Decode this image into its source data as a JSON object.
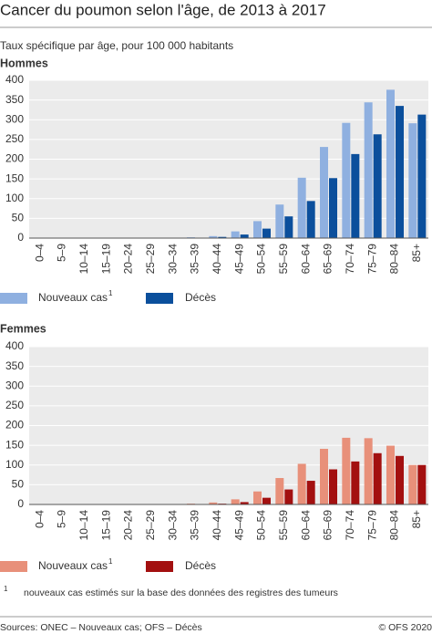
{
  "header": {
    "title": "Cancer du poumon selon l'âge, de 2013 à 2017",
    "subtitle": "Taux spécifique par âge, pour 100 000 habitants"
  },
  "chart_data": [
    {
      "type": "bar",
      "title": "Hommes",
      "categories": [
        "0–4",
        "5–9",
        "10–14",
        "15–19",
        "20–24",
        "25–29",
        "30–34",
        "35–39",
        "40–44",
        "45–49",
        "50–54",
        "55–59",
        "60–64",
        "65–69",
        "70–74",
        "75–79",
        "80–84",
        "85+"
      ],
      "series": [
        {
          "name": "Nouveaux cas",
          "note": "1",
          "color": "#8fb0e0",
          "values": [
            0,
            0,
            0,
            0,
            0,
            0,
            0,
            2,
            5,
            17,
            43,
            85,
            153,
            231,
            292,
            344,
            376,
            291
          ]
        },
        {
          "name": "Décès",
          "color": "#0b4f9c",
          "values": [
            0,
            0,
            0,
            0,
            0,
            0,
            0,
            1,
            3,
            9,
            24,
            55,
            94,
            152,
            213,
            263,
            335,
            313
          ]
        }
      ],
      "ylim": [
        0,
        400
      ],
      "yticks": [
        0,
        50,
        100,
        150,
        200,
        250,
        300,
        350,
        400
      ],
      "grid": true
    },
    {
      "type": "bar",
      "title": "Femmes",
      "categories": [
        "0–4",
        "5–9",
        "10–14",
        "15–19",
        "20–24",
        "25–29",
        "30–34",
        "35–39",
        "40–44",
        "45–49",
        "50–54",
        "55–59",
        "60–64",
        "65–69",
        "70–74",
        "75–79",
        "80–84",
        "85+"
      ],
      "series": [
        {
          "name": "Nouveaux cas",
          "note": "1",
          "color": "#e8907a",
          "values": [
            0,
            0,
            0,
            0,
            0,
            0,
            0,
            2,
            5,
            13,
            33,
            67,
            103,
            141,
            169,
            168,
            149,
            100
          ]
        },
        {
          "name": "Décès",
          "color": "#a31010",
          "values": [
            0,
            0,
            0,
            0,
            0,
            0,
            0,
            1,
            2,
            6,
            17,
            38,
            60,
            89,
            109,
            130,
            123,
            100
          ]
        }
      ],
      "ylim": [
        0,
        400
      ],
      "yticks": [
        0,
        50,
        100,
        150,
        200,
        250,
        300,
        350,
        400
      ],
      "grid": true
    }
  ],
  "footnote": {
    "marker": "1",
    "text": "nouveaux cas estimés sur la base des données des registres des tumeurs"
  },
  "sources": "Sources: ONEC – Nouveaux cas; OFS – Décès",
  "copyright": "© OFS 2020"
}
